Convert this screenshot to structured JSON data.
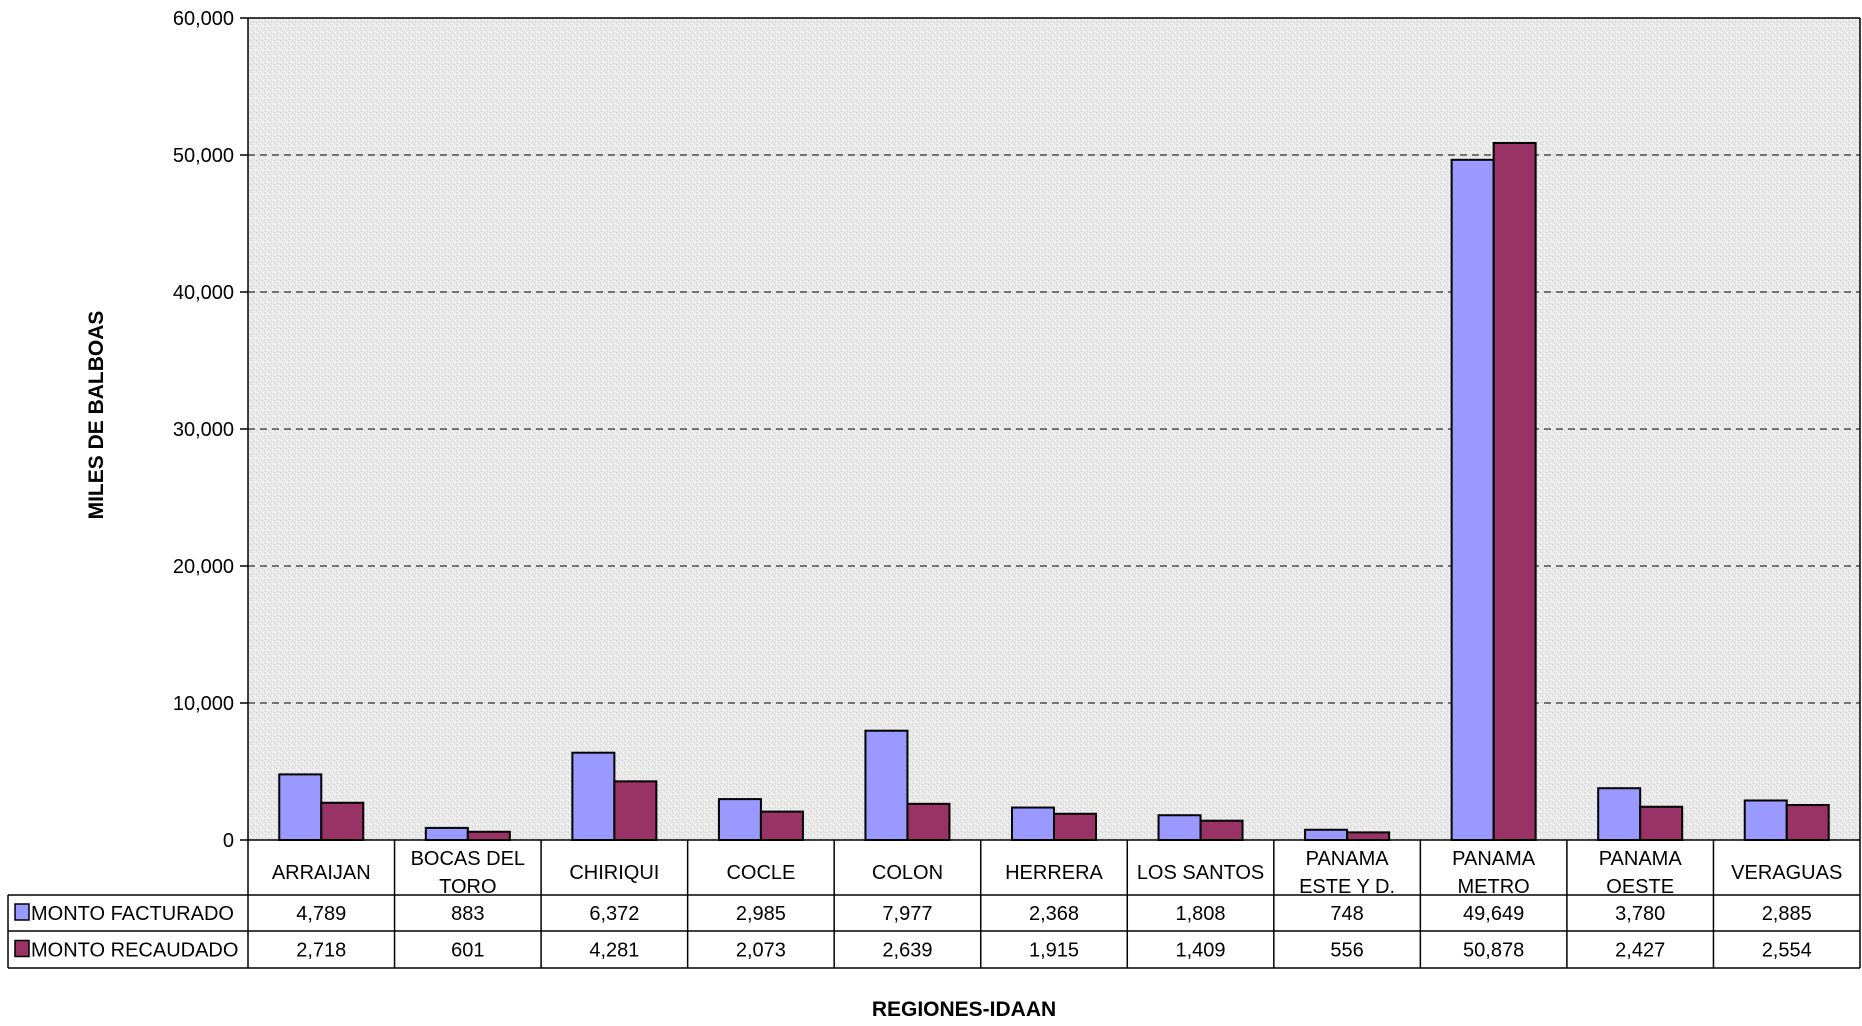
{
  "chart_data": {
    "type": "bar",
    "title": "",
    "xlabel": "REGIONES-IDAAN",
    "ylabel": "MILES DE BALBOAS",
    "ylim": [
      0,
      60000
    ],
    "yticks": [
      0,
      10000,
      20000,
      30000,
      40000,
      50000,
      60000
    ],
    "ytick_labels": [
      "0",
      "10,000",
      "20,000",
      "30,000",
      "40,000",
      "50,000",
      "60,000"
    ],
    "grid": true,
    "legend": "data-table",
    "categories": [
      [
        "ARRAIJAN"
      ],
      [
        "BOCAS DEL",
        "TORO"
      ],
      [
        "CHIRIQUI"
      ],
      [
        "COCLE"
      ],
      [
        "COLON"
      ],
      [
        "HERRERA"
      ],
      [
        "LOS SANTOS"
      ],
      [
        "PANAMA",
        "ESTE Y D."
      ],
      [
        "PANAMA",
        "METRO"
      ],
      [
        "PANAMA",
        "OESTE"
      ],
      [
        "VERAGUAS"
      ]
    ],
    "series": [
      {
        "name": "MONTO FACTURADO",
        "color": "#9999ff",
        "values": [
          4789,
          883,
          6372,
          2985,
          7977,
          2368,
          1808,
          748,
          49649,
          3780,
          2885
        ],
        "labels": [
          "4,789",
          "883",
          "6,372",
          "2,985",
          "7,977",
          "2,368",
          "1,808",
          "748",
          "49,649",
          "3,780",
          "2,885"
        ]
      },
      {
        "name": "MONTO RECAUDADO",
        "color": "#993366",
        "values": [
          2718,
          601,
          4281,
          2073,
          2639,
          1915,
          1409,
          556,
          50878,
          2427,
          2554
        ],
        "labels": [
          "2,718",
          "601",
          "4,281",
          "2,073",
          "2,639",
          "1,915",
          "1,409",
          "556",
          "50,878",
          "2,427",
          "2,554"
        ]
      }
    ]
  }
}
